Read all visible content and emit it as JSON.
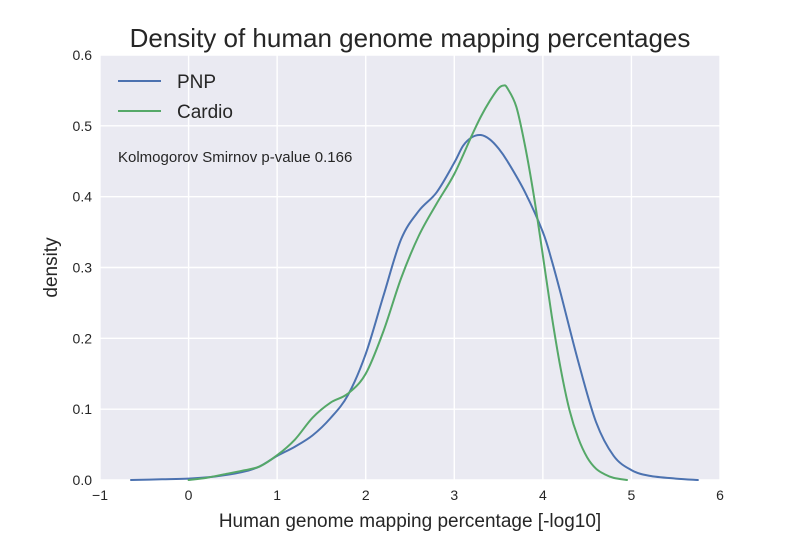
{
  "chart_data": {
    "type": "line",
    "title": "Density of human genome mapping percentages",
    "xlabel": "Human genome mapping percentage [-log10]",
    "ylabel": "density",
    "xlim": [
      -1,
      6
    ],
    "ylim": [
      0,
      0.6
    ],
    "x_ticks": [
      "−1",
      "0",
      "1",
      "2",
      "3",
      "4",
      "5",
      "6"
    ],
    "y_ticks": [
      "0.0",
      "0.1",
      "0.2",
      "0.3",
      "0.4",
      "0.5",
      "0.6"
    ],
    "grid": true,
    "legend_position": "top-left",
    "annotation": "Kolmogorov Smirnov p-value 0.166",
    "series": [
      {
        "name": "PNP",
        "color": "#4c72b0",
        "points": [
          [
            -0.65,
            0.0
          ],
          [
            -0.3,
            0.001
          ],
          [
            0.0,
            0.002
          ],
          [
            0.3,
            0.005
          ],
          [
            0.6,
            0.011
          ],
          [
            0.8,
            0.019
          ],
          [
            1.0,
            0.034
          ],
          [
            1.2,
            0.047
          ],
          [
            1.4,
            0.063
          ],
          [
            1.6,
            0.087
          ],
          [
            1.8,
            0.12
          ],
          [
            2.0,
            0.178
          ],
          [
            2.2,
            0.26
          ],
          [
            2.4,
            0.34
          ],
          [
            2.6,
            0.38
          ],
          [
            2.8,
            0.406
          ],
          [
            3.0,
            0.448
          ],
          [
            3.1,
            0.472
          ],
          [
            3.2,
            0.484
          ],
          [
            3.3,
            0.487
          ],
          [
            3.4,
            0.481
          ],
          [
            3.5,
            0.468
          ],
          [
            3.6,
            0.45
          ],
          [
            3.8,
            0.406
          ],
          [
            4.0,
            0.35
          ],
          [
            4.1,
            0.31
          ],
          [
            4.2,
            0.264
          ],
          [
            4.4,
            0.167
          ],
          [
            4.6,
            0.082
          ],
          [
            4.8,
            0.034
          ],
          [
            5.0,
            0.014
          ],
          [
            5.2,
            0.006
          ],
          [
            5.5,
            0.002
          ],
          [
            5.75,
            0.0
          ]
        ]
      },
      {
        "name": "Cardio",
        "color": "#55a868",
        "points": [
          [
            0.0,
            0.0
          ],
          [
            0.2,
            0.003
          ],
          [
            0.4,
            0.008
          ],
          [
            0.6,
            0.013
          ],
          [
            0.8,
            0.019
          ],
          [
            1.0,
            0.035
          ],
          [
            1.2,
            0.057
          ],
          [
            1.4,
            0.088
          ],
          [
            1.6,
            0.109
          ],
          [
            1.8,
            0.122
          ],
          [
            2.0,
            0.15
          ],
          [
            2.2,
            0.21
          ],
          [
            2.4,
            0.285
          ],
          [
            2.6,
            0.345
          ],
          [
            2.8,
            0.39
          ],
          [
            3.0,
            0.432
          ],
          [
            3.2,
            0.487
          ],
          [
            3.3,
            0.513
          ],
          [
            3.4,
            0.535
          ],
          [
            3.5,
            0.553
          ],
          [
            3.56,
            0.557
          ],
          [
            3.6,
            0.553
          ],
          [
            3.7,
            0.527
          ],
          [
            3.8,
            0.471
          ],
          [
            3.9,
            0.4
          ],
          [
            4.0,
            0.317
          ],
          [
            4.1,
            0.232
          ],
          [
            4.2,
            0.158
          ],
          [
            4.3,
            0.099
          ],
          [
            4.4,
            0.059
          ],
          [
            4.5,
            0.032
          ],
          [
            4.6,
            0.016
          ],
          [
            4.7,
            0.008
          ],
          [
            4.8,
            0.003
          ],
          [
            4.95,
            0.0
          ]
        ]
      }
    ]
  }
}
